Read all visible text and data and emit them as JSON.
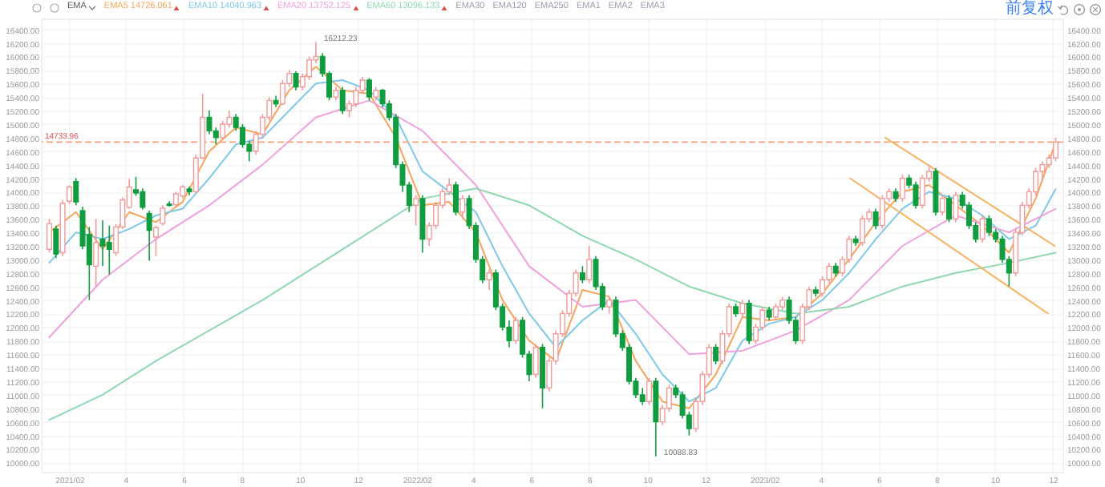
{
  "chart_data": {
    "type": "candlestick",
    "x": [
      "2021-01-11",
      "2021-01-18",
      "2021-01-25",
      "2021-02-01",
      "2021-02-08",
      "2021-02-15",
      "2021-02-22",
      "2021-03-01",
      "2021-03-08",
      "2021-03-15",
      "2021-03-22",
      "2021-03-29",
      "2021-04-05",
      "2021-04-12",
      "2021-04-19",
      "2021-04-26",
      "2021-05-03",
      "2021-05-10",
      "2021-05-17",
      "2021-05-24",
      "2021-05-31",
      "2021-06-07",
      "2021-06-14",
      "2021-06-21",
      "2021-06-28",
      "2021-07-05",
      "2021-07-12",
      "2021-07-19",
      "2021-07-26",
      "2021-08-02",
      "2021-08-09",
      "2021-08-16",
      "2021-08-23",
      "2021-08-30",
      "2021-09-06",
      "2021-09-13",
      "2021-09-20",
      "2021-09-27",
      "2021-10-04",
      "2021-10-11",
      "2021-10-18",
      "2021-10-25",
      "2021-11-01",
      "2021-11-08",
      "2021-11-15",
      "2021-11-22",
      "2021-11-29",
      "2021-12-06",
      "2021-12-13",
      "2021-12-20",
      "2021-12-27",
      "2022-01-03",
      "2022-01-10",
      "2022-01-17",
      "2022-01-24",
      "2022-01-31",
      "2022-02-07",
      "2022-02-14",
      "2022-02-21",
      "2022-02-28",
      "2022-03-07",
      "2022-03-14",
      "2022-03-21",
      "2022-03-28",
      "2022-04-04",
      "2022-04-11",
      "2022-04-18",
      "2022-04-25",
      "2022-05-02",
      "2022-05-09",
      "2022-05-16",
      "2022-05-23",
      "2022-05-30",
      "2022-06-06",
      "2022-06-13",
      "2022-06-20",
      "2022-06-27",
      "2022-07-04",
      "2022-07-11",
      "2022-07-18",
      "2022-07-25",
      "2022-08-01",
      "2022-08-08",
      "2022-08-15",
      "2022-08-22",
      "2022-08-29",
      "2022-09-05",
      "2022-09-12",
      "2022-09-19",
      "2022-09-26",
      "2022-10-03",
      "2022-10-10",
      "2022-10-17",
      "2022-10-24",
      "2022-10-31",
      "2022-11-07",
      "2022-11-14",
      "2022-11-21",
      "2022-11-28",
      "2022-12-05",
      "2022-12-12",
      "2022-12-19",
      "2022-12-26",
      "2023-01-02",
      "2023-01-09",
      "2023-01-16",
      "2023-01-23",
      "2023-01-30",
      "2023-02-06",
      "2023-02-13",
      "2023-02-20",
      "2023-02-27",
      "2023-03-06",
      "2023-03-13",
      "2023-03-20",
      "2023-03-27",
      "2023-04-03",
      "2023-04-10",
      "2023-04-17",
      "2023-04-24",
      "2023-05-01",
      "2023-05-08",
      "2023-05-15",
      "2023-05-22",
      "2023-05-29",
      "2023-06-05",
      "2023-06-12",
      "2023-06-19",
      "2023-06-26",
      "2023-07-03",
      "2023-07-10",
      "2023-07-17",
      "2023-07-24",
      "2023-07-31",
      "2023-08-07",
      "2023-08-14",
      "2023-08-21",
      "2023-08-28",
      "2023-09-04",
      "2023-09-11",
      "2023-09-18",
      "2023-09-25",
      "2023-10-02",
      "2023-10-09",
      "2023-10-16",
      "2023-10-23",
      "2023-10-30",
      "2023-11-06",
      "2023-11-13",
      "2023-11-20",
      "2023-11-27",
      "2023-12-04"
    ],
    "ohlc": [
      [
        13150,
        13600,
        13100,
        13530
      ],
      [
        13450,
        13500,
        13020,
        13080
      ],
      [
        13100,
        13880,
        13050,
        13830
      ],
      [
        13860,
        14100,
        13820,
        14070
      ],
      [
        14150,
        14200,
        13800,
        13850
      ],
      [
        13720,
        13780,
        13150,
        13200
      ],
      [
        13370,
        13480,
        12400,
        12920
      ],
      [
        12900,
        13600,
        12600,
        13250
      ],
      [
        13300,
        13580,
        12900,
        13200
      ],
      [
        13250,
        13500,
        12780,
        13150
      ],
      [
        13100,
        13520,
        13050,
        13480
      ],
      [
        13480,
        13920,
        13450,
        13880
      ],
      [
        13770,
        14190,
        13750,
        14070
      ],
      [
        14030,
        14220,
        13940,
        13980
      ],
      [
        14000,
        14050,
        13740,
        13770
      ],
      [
        13680,
        13720,
        12980,
        13430
      ],
      [
        13330,
        13500,
        13050,
        13470
      ],
      [
        13530,
        13800,
        13500,
        13760
      ],
      [
        13820,
        13860,
        13780,
        13800
      ],
      [
        13810,
        14000,
        13780,
        13970
      ],
      [
        13940,
        14100,
        13900,
        14070
      ],
      [
        14040,
        14080,
        13950,
        14000
      ],
      [
        14000,
        14550,
        13980,
        14500
      ],
      [
        14500,
        15450,
        14480,
        15100
      ],
      [
        15100,
        15200,
        14850,
        14900
      ],
      [
        14900,
        14950,
        14700,
        14800
      ],
      [
        14800,
        15050,
        14780,
        15000
      ],
      [
        15000,
        15200,
        14950,
        15100
      ],
      [
        15100,
        15150,
        14900,
        14950
      ],
      [
        14950,
        15000,
        14650,
        14700
      ],
      [
        14700,
        14750,
        14450,
        14600
      ],
      [
        14600,
        14900,
        14550,
        14850
      ],
      [
        14850,
        15150,
        14800,
        15100
      ],
      [
        15100,
        15400,
        15050,
        15350
      ],
      [
        15350,
        15420,
        15250,
        15300
      ],
      [
        15300,
        15650,
        15280,
        15600
      ],
      [
        15600,
        15800,
        15550,
        15750
      ],
      [
        15750,
        15780,
        15500,
        15550
      ],
      [
        15550,
        15750,
        15500,
        15700
      ],
      [
        15700,
        16000,
        15650,
        15950
      ],
      [
        15950,
        16212.23,
        15900,
        16000
      ],
      [
        16000,
        16050,
        15700,
        15750
      ],
      [
        15750,
        15780,
        15350,
        15400
      ],
      [
        15400,
        15550,
        15350,
        15500
      ],
      [
        15500,
        15550,
        15150,
        15200
      ],
      [
        15200,
        15350,
        15100,
        15300
      ],
      [
        15300,
        15550,
        15250,
        15500
      ],
      [
        15500,
        15700,
        15450,
        15650
      ],
      [
        15650,
        15680,
        15350,
        15400
      ],
      [
        15400,
        15550,
        15350,
        15500
      ],
      [
        15500,
        15520,
        15250,
        15300
      ],
      [
        15300,
        15350,
        15050,
        15100
      ],
      [
        15100,
        15150,
        14350,
        14400
      ],
      [
        14400,
        14450,
        14000,
        14100
      ],
      [
        14100,
        14150,
        13700,
        13800
      ],
      [
        13800,
        13950,
        13500,
        13900
      ],
      [
        13900,
        13950,
        13100,
        13300
      ],
      [
        13300,
        13550,
        13200,
        13500
      ],
      [
        13500,
        13850,
        13450,
        13800
      ],
      [
        13800,
        14050,
        13750,
        14000
      ],
      [
        14000,
        14200,
        13950,
        14100
      ],
      [
        14100,
        14150,
        13650,
        13700
      ],
      [
        13700,
        13950,
        13600,
        13900
      ],
      [
        13900,
        13950,
        13450,
        13500
      ],
      [
        13500,
        13550,
        12950,
        13000
      ],
      [
        13000,
        13050,
        12650,
        12700
      ],
      [
        12700,
        12850,
        12550,
        12800
      ],
      [
        12800,
        12850,
        12250,
        12300
      ],
      [
        12300,
        12350,
        11950,
        12000
      ],
      [
        12000,
        12100,
        11700,
        11800
      ],
      [
        11800,
        12150,
        11750,
        12100
      ],
      [
        12100,
        12150,
        11550,
        11600
      ],
      [
        11600,
        11650,
        11200,
        11300
      ],
      [
        11300,
        11750,
        11250,
        11700
      ],
      [
        11700,
        11750,
        10800,
        11100
      ],
      [
        11100,
        11550,
        11050,
        11500
      ],
      [
        11500,
        11950,
        11450,
        11900
      ],
      [
        11900,
        12250,
        11850,
        12200
      ],
      [
        12200,
        12550,
        12150,
        12500
      ],
      [
        12500,
        12850,
        12450,
        12800
      ],
      [
        12800,
        12900,
        12650,
        12700
      ],
      [
        12700,
        13200,
        12650,
        13000
      ],
      [
        13000,
        13050,
        12550,
        12600
      ],
      [
        12600,
        12650,
        12250,
        12300
      ],
      [
        12300,
        12450,
        12200,
        12400
      ],
      [
        12400,
        12450,
        11850,
        11900
      ],
      [
        11900,
        11950,
        11650,
        11700
      ],
      [
        11700,
        11750,
        11150,
        11200
      ],
      [
        11200,
        11250,
        10950,
        11000
      ],
      [
        11000,
        11100,
        10850,
        10900
      ],
      [
        10900,
        11250,
        10850,
        11200
      ],
      [
        11200,
        11250,
        10088.83,
        10600
      ],
      [
        10600,
        10850,
        10550,
        10800
      ],
      [
        10800,
        11150,
        10750,
        11100
      ],
      [
        11100,
        11150,
        10950,
        11000
      ],
      [
        11000,
        11050,
        10650,
        10700
      ],
      [
        10700,
        10750,
        10400,
        10500
      ],
      [
        10500,
        10950,
        10450,
        10900
      ],
      [
        10900,
        11350,
        10850,
        11300
      ],
      [
        11300,
        11750,
        11250,
        11700
      ],
      [
        11700,
        11750,
        11450,
        11500
      ],
      [
        11500,
        11950,
        11450,
        11900
      ],
      [
        11900,
        12350,
        11850,
        12300
      ],
      [
        12300,
        12350,
        12150,
        12200
      ],
      [
        12200,
        12400,
        12150,
        12350
      ],
      [
        12350,
        12400,
        11750,
        11800
      ],
      [
        11800,
        12050,
        11750,
        12000
      ],
      [
        12000,
        12300,
        11950,
        12250
      ],
      [
        12250,
        12300,
        12100,
        12150
      ],
      [
        12150,
        12350,
        12100,
        12300
      ],
      [
        12300,
        12450,
        12250,
        12400
      ],
      [
        12400,
        12450,
        12050,
        12100
      ],
      [
        12100,
        12150,
        11750,
        11800
      ],
      [
        11800,
        12350,
        11750,
        12300
      ],
      [
        12300,
        12600,
        12250,
        12550
      ],
      [
        12550,
        12600,
        12450,
        12500
      ],
      [
        12500,
        12750,
        12450,
        12700
      ],
      [
        12700,
        12950,
        12650,
        12900
      ],
      [
        12900,
        12950,
        12750,
        12800
      ],
      [
        12800,
        13050,
        12750,
        13000
      ],
      [
        13000,
        13350,
        12950,
        13300
      ],
      [
        13300,
        13350,
        13200,
        13250
      ],
      [
        13250,
        13650,
        13200,
        13600
      ],
      [
        13600,
        13750,
        13550,
        13700
      ],
      [
        13700,
        13750,
        13450,
        13500
      ],
      [
        13500,
        13950,
        13450,
        13900
      ],
      [
        13900,
        14050,
        13850,
        14000
      ],
      [
        14000,
        14050,
        13850,
        13900
      ],
      [
        13900,
        14250,
        13850,
        14200
      ],
      [
        14200,
        14250,
        14050,
        14100
      ],
      [
        14100,
        14150,
        13750,
        13800
      ],
      [
        13800,
        14250,
        13750,
        14200
      ],
      [
        14200,
        14400,
        14150,
        14300
      ],
      [
        14300,
        14350,
        13650,
        13700
      ],
      [
        13700,
        13950,
        13650,
        13900
      ],
      [
        13900,
        13950,
        13550,
        13600
      ],
      [
        13600,
        14000,
        13550,
        13950
      ],
      [
        13950,
        14000,
        13750,
        13800
      ],
      [
        13800,
        13850,
        13450,
        13500
      ],
      [
        13500,
        13550,
        13250,
        13300
      ],
      [
        13300,
        13650,
        13250,
        13600
      ],
      [
        13600,
        13650,
        13350,
        13400
      ],
      [
        13400,
        13450,
        13250,
        13300
      ],
      [
        13300,
        13350,
        12950,
        13000
      ],
      [
        13000,
        13050,
        12600,
        12800
      ],
      [
        12800,
        13450,
        12750,
        13400
      ],
      [
        13400,
        13850,
        13350,
        13800
      ],
      [
        13800,
        14050,
        13750,
        14000
      ],
      [
        14000,
        14350,
        13950,
        14300
      ],
      [
        14300,
        14450,
        14150,
        14400
      ],
      [
        14400,
        14550,
        14350,
        14500
      ],
      [
        14500,
        14800,
        14450,
        14733.96
      ]
    ],
    "colors": [
      "#f29b9b",
      "#0f9d3f",
      "#f29b9b",
      "#f29b9b",
      "#0f9d3f",
      "#0f9d3f",
      "#0f9d3f",
      "#f29b9b",
      "#0f9d3f",
      "#0f9d3f",
      "#f29b9b",
      "#f29b9b",
      "#f29b9b",
      "#0f9d3f",
      "#0f9d3f",
      "#0f9d3f",
      "#f29b9b",
      "#f29b9b",
      "#0f9d3f",
      "#f29b9b",
      "#f29b9b",
      "#0f9d3f",
      "#f29b9b",
      "#f29b9b",
      "#0f9d3f",
      "#0f9d3f",
      "#f29b9b",
      "#f29b9b",
      "#0f9d3f",
      "#0f9d3f",
      "#0f9d3f",
      "#f29b9b",
      "#f29b9b",
      "#f29b9b",
      "#0f9d3f",
      "#f29b9b",
      "#f29b9b",
      "#0f9d3f",
      "#f29b9b",
      "#f29b9b",
      "#f29b9b",
      "#0f9d3f",
      "#0f9d3f",
      "#f29b9b",
      "#0f9d3f",
      "#f29b9b",
      "#f29b9b",
      "#f29b9b",
      "#0f9d3f",
      "#f29b9b",
      "#0f9d3f",
      "#0f9d3f",
      "#0f9d3f",
      "#0f9d3f",
      "#0f9d3f",
      "#f29b9b",
      "#0f9d3f",
      "#f29b9b",
      "#f29b9b",
      "#f29b9b",
      "#f29b9b",
      "#0f9d3f",
      "#f29b9b",
      "#0f9d3f",
      "#0f9d3f",
      "#0f9d3f",
      "#f29b9b",
      "#0f9d3f",
      "#0f9d3f",
      "#0f9d3f",
      "#f29b9b",
      "#0f9d3f",
      "#0f9d3f",
      "#f29b9b",
      "#0f9d3f",
      "#f29b9b",
      "#f29b9b",
      "#f29b9b",
      "#f29b9b",
      "#f29b9b",
      "#0f9d3f",
      "#f29b9b",
      "#0f9d3f",
      "#0f9d3f",
      "#f29b9b",
      "#0f9d3f",
      "#0f9d3f",
      "#0f9d3f",
      "#0f9d3f",
      "#0f9d3f",
      "#f29b9b",
      "#0f9d3f",
      "#f29b9b",
      "#f29b9b",
      "#0f9d3f",
      "#0f9d3f",
      "#0f9d3f",
      "#f29b9b",
      "#f29b9b",
      "#f29b9b",
      "#0f9d3f",
      "#f29b9b",
      "#f29b9b",
      "#0f9d3f",
      "#f29b9b",
      "#0f9d3f",
      "#f29b9b",
      "#f29b9b",
      "#0f9d3f",
      "#f29b9b",
      "#f29b9b",
      "#0f9d3f",
      "#0f9d3f",
      "#f29b9b",
      "#f29b9b",
      "#0f9d3f",
      "#f29b9b",
      "#f29b9b",
      "#0f9d3f",
      "#f29b9b",
      "#f29b9b",
      "#0f9d3f",
      "#f29b9b",
      "#f29b9b",
      "#0f9d3f",
      "#f29b9b",
      "#f29b9b",
      "#0f9d3f",
      "#f29b9b",
      "#0f9d3f",
      "#0f9d3f",
      "#f29b9b",
      "#f29b9b",
      "#0f9d3f",
      "#f29b9b",
      "#0f9d3f",
      "#f29b9b",
      "#0f9d3f",
      "#0f9d3f",
      "#0f9d3f",
      "#f29b9b",
      "#0f9d3f",
      "#0f9d3f",
      "#0f9d3f",
      "#0f9d3f",
      "#f29b9b",
      "#f29b9b",
      "#f29b9b",
      "#f29b9b",
      "#f29b9b",
      "#f29b9b",
      "#f29b9b"
    ],
    "series": [
      {
        "name": "EMA5 14726.061",
        "type": "line",
        "color": "#f5a55a",
        "x": [
          "2021-01-11",
          "2021-02-08",
          "2021-03-08",
          "2021-04-05",
          "2021-05-03",
          "2021-05-31",
          "2021-06-28",
          "2021-07-26",
          "2021-08-23",
          "2021-09-20",
          "2021-10-18",
          "2021-11-15",
          "2021-12-13",
          "2022-01-10",
          "2022-02-07",
          "2022-03-07",
          "2022-04-04",
          "2022-05-02",
          "2022-05-30",
          "2022-06-27",
          "2022-07-25",
          "2022-08-22",
          "2022-09-19",
          "2022-10-17",
          "2022-11-14",
          "2022-12-12",
          "2023-01-09",
          "2023-02-06",
          "2023-03-06",
          "2023-04-03",
          "2023-05-01",
          "2023-05-29",
          "2023-06-26",
          "2023-07-24",
          "2023-08-21",
          "2023-09-18",
          "2023-10-16",
          "2023-11-13",
          "2023-12-04"
        ],
        "values": [
          13400,
          13700,
          13150,
          13700,
          13550,
          13850,
          14600,
          14950,
          14850,
          15500,
          15850,
          15500,
          15450,
          14800,
          13800,
          13850,
          13400,
          12400,
          11800,
          11500,
          12550,
          12450,
          11500,
          10900,
          10800,
          11300,
          12150,
          12100,
          12150,
          12500,
          13000,
          13550,
          14000,
          14100,
          13800,
          13500,
          13100,
          13900,
          14730
        ]
      },
      {
        "name": "EMA10 14040.963",
        "type": "line",
        "color": "#7ec8e8",
        "x": [
          "2021-01-11",
          "2021-02-08",
          "2021-03-08",
          "2021-04-05",
          "2021-05-03",
          "2021-05-31",
          "2021-06-28",
          "2021-07-26",
          "2021-08-23",
          "2021-09-20",
          "2021-10-18",
          "2021-11-15",
          "2021-12-13",
          "2022-01-10",
          "2022-02-07",
          "2022-03-07",
          "2022-04-04",
          "2022-05-02",
          "2022-05-30",
          "2022-06-27",
          "2022-07-25",
          "2022-08-22",
          "2022-09-19",
          "2022-10-17",
          "2022-11-14",
          "2022-12-12",
          "2023-01-09",
          "2023-02-06",
          "2023-03-06",
          "2023-04-03",
          "2023-05-01",
          "2023-05-29",
          "2023-06-26",
          "2023-07-24",
          "2023-08-21",
          "2023-09-18",
          "2023-10-16",
          "2023-11-13",
          "2023-12-04"
        ],
        "values": [
          12950,
          13400,
          13300,
          13450,
          13650,
          13750,
          14200,
          14700,
          14800,
          15200,
          15600,
          15650,
          15500,
          15100,
          14300,
          14000,
          13700,
          12900,
          12200,
          11700,
          12100,
          12400,
          11900,
          11300,
          10900,
          11100,
          11800,
          12050,
          12150,
          12400,
          12800,
          13300,
          13750,
          14000,
          13900,
          13650,
          13300,
          13500,
          14040
        ]
      },
      {
        "name": "EMA20 13752.125",
        "type": "line",
        "color": "#f0a0dc",
        "x": [
          "2021-01-11",
          "2021-03-08",
          "2021-05-03",
          "2021-06-28",
          "2021-08-23",
          "2021-10-18",
          "2021-12-13",
          "2022-02-07",
          "2022-04-04",
          "2022-05-30",
          "2022-07-25",
          "2022-09-19",
          "2022-11-14",
          "2023-01-09",
          "2023-03-06",
          "2023-05-01",
          "2023-06-26",
          "2023-08-21",
          "2023-10-16",
          "2023-12-04"
        ],
        "values": [
          11850,
          12700,
          13300,
          13800,
          14400,
          15100,
          15350,
          14900,
          14100,
          12900,
          12300,
          12400,
          11600,
          11650,
          11950,
          12400,
          13200,
          13650,
          13400,
          13750
        ]
      },
      {
        "name": "EMA60 13096.133",
        "type": "line",
        "color": "#8fd8b0",
        "x": [
          "2021-01-11",
          "2021-03-08",
          "2021-05-03",
          "2021-06-28",
          "2021-08-23",
          "2021-10-18",
          "2021-12-13",
          "2022-02-07",
          "2022-04-04",
          "2022-05-30",
          "2022-07-25",
          "2022-09-19",
          "2022-11-14",
          "2023-01-09",
          "2023-03-06",
          "2023-05-01",
          "2023-06-26",
          "2023-08-21",
          "2023-10-16",
          "2023-12-04"
        ],
        "values": [
          10630,
          11000,
          11500,
          11950,
          12400,
          12900,
          13400,
          13900,
          14050,
          13800,
          13350,
          13000,
          12600,
          12350,
          12200,
          12300,
          12600,
          12800,
          12950,
          13100
        ]
      },
      {
        "type": "line",
        "color": "#f7b262",
        "x": [
          "2023-06-08",
          "2023-12-03"
        ],
        "values": [
          14800,
          13200
        ]
      },
      {
        "type": "line",
        "color": "#f7b262",
        "x": [
          "2023-05-02",
          "2023-11-26"
        ],
        "values": [
          14200,
          12200
        ]
      }
    ],
    "xlim": [
      "2021-01-03",
      "2023-12-12"
    ],
    "xticks": [
      {
        "value": "2021-02-01",
        "label": "2021/02"
      },
      {
        "value": "2021-04-01",
        "label": "4"
      },
      {
        "value": "2021-06-01",
        "label": "6"
      },
      {
        "value": "2021-08-01",
        "label": "8"
      },
      {
        "value": "2021-10-01",
        "label": "10"
      },
      {
        "value": "2021-12-01",
        "label": "12"
      },
      {
        "value": "2022-02-01",
        "label": "2022/02"
      },
      {
        "value": "2022-04-01",
        "label": "4"
      },
      {
        "value": "2022-06-01",
        "label": "6"
      },
      {
        "value": "2022-08-01",
        "label": "8"
      },
      {
        "value": "2022-10-01",
        "label": "10"
      },
      {
        "value": "2022-12-01",
        "label": "12"
      },
      {
        "value": "2023-02-01",
        "label": "2023/02"
      },
      {
        "value": "2023-04-01",
        "label": "4"
      },
      {
        "value": "2023-06-01",
        "label": "6"
      },
      {
        "value": "2023-08-01",
        "label": "8"
      },
      {
        "value": "2023-10-01",
        "label": "10"
      },
      {
        "value": "2023-12-01",
        "label": "12"
      }
    ],
    "ylim": [
      9850,
      16550
    ],
    "yticks": [
      {
        "value": 10000,
        "label": "10000.00"
      },
      {
        "value": 10200,
        "label": "10200.00"
      },
      {
        "value": 10400,
        "label": "10400.00"
      },
      {
        "value": 10600,
        "label": "10600.00"
      },
      {
        "value": 10800,
        "label": "10800.00"
      },
      {
        "value": 11000,
        "label": "11000.00"
      },
      {
        "value": 11200,
        "label": "11200.00"
      },
      {
        "value": 11400,
        "label": "11400.00"
      },
      {
        "value": 11600,
        "label": "11600.00"
      },
      {
        "value": 11800,
        "label": "11800.00"
      },
      {
        "value": 12000,
        "label": "12000.00"
      },
      {
        "value": 12200,
        "label": "12200.00"
      },
      {
        "value": 12400,
        "label": "12400.00"
      },
      {
        "value": 12600,
        "label": "12600.00"
      },
      {
        "value": 12800,
        "label": "12800.00"
      },
      {
        "value": 13000,
        "label": "13000.00"
      },
      {
        "value": 13200,
        "label": "13200.00"
      },
      {
        "value": 13400,
        "label": "13400.00"
      },
      {
        "value": 13600,
        "label": "13600.00"
      },
      {
        "value": 13800,
        "label": "13800.00"
      },
      {
        "value": 14000,
        "label": "14000.00"
      },
      {
        "value": 14200,
        "label": "14200.00"
      },
      {
        "value": 14400,
        "label": "14400.00"
      },
      {
        "value": 14600,
        "label": "14600.00"
      },
      {
        "value": 14800,
        "label": "14800.00"
      },
      {
        "value": 15000,
        "label": "15000.00"
      },
      {
        "value": 15200,
        "label": "15200.00"
      },
      {
        "value": 15400,
        "label": "15400.00"
      },
      {
        "value": 15600,
        "label": "15600.00"
      },
      {
        "value": 15800,
        "label": "15800.00"
      },
      {
        "value": 16000,
        "label": "16000.00"
      },
      {
        "value": 16200,
        "label": "16200.00"
      },
      {
        "value": 16400,
        "label": "16400.00"
      }
    ],
    "y2lim": [
      9850,
      16550
    ],
    "y2ticks": [
      {
        "value": 10000,
        "label": "10000.00"
      },
      {
        "value": 10200,
        "label": "10200.00"
      },
      {
        "value": 10400,
        "label": "10400.00"
      },
      {
        "value": 10600,
        "label": "10600.00"
      },
      {
        "value": 10800,
        "label": "10800.00"
      },
      {
        "value": 11000,
        "label": "11000.00"
      },
      {
        "value": 11200,
        "label": "11200.00"
      },
      {
        "value": 11400,
        "label": "11400.00"
      },
      {
        "value": 11600,
        "label": "11600.00"
      },
      {
        "value": 11800,
        "label": "11800.00"
      },
      {
        "value": 12000,
        "label": "12000.00"
      },
      {
        "value": 12200,
        "label": "12200.00"
      },
      {
        "value": 12400,
        "label": "12400.00"
      },
      {
        "value": 12600,
        "label": "12600.00"
      },
      {
        "value": 12800,
        "label": "12800.00"
      },
      {
        "value": 13000,
        "label": "13000.00"
      },
      {
        "value": 13200,
        "label": "13200.00"
      },
      {
        "value": 13400,
        "label": "13400.00"
      },
      {
        "value": 13600,
        "label": "13600.00"
      },
      {
        "value": 13800,
        "label": "13800.00"
      },
      {
        "value": 14000,
        "label": "14000.00"
      },
      {
        "value": 14200,
        "label": "14200.00"
      },
      {
        "value": 14400,
        "label": "14400.00"
      },
      {
        "value": 14600,
        "label": "14600.00"
      },
      {
        "value": 14800,
        "label": "14800.00"
      },
      {
        "value": 15000,
        "label": "15000.00"
      },
      {
        "value": 15200,
        "label": "15200.00"
      },
      {
        "value": 15400,
        "label": "15400.00"
      },
      {
        "value": 15600,
        "label": "15600.00"
      },
      {
        "value": 15800,
        "label": "15800.00"
      },
      {
        "value": 16000,
        "label": "16000.00"
      },
      {
        "value": 16200,
        "label": "16200.00"
      },
      {
        "value": 16400,
        "label": "16400.00"
      }
    ],
    "ref_lines": [
      {
        "axis": "y",
        "value": 14733.96,
        "label": "14733.96",
        "color": "#f5a57a",
        "line_style": "dashed"
      }
    ],
    "annotations": [
      "EMA",
      "EMA30",
      "EMA120",
      "EMA250",
      "EMA1",
      "EMA2",
      "EMA3",
      "前复权",
      {
        "text": "16212.23",
        "x": "2021-10-18",
        "y": 16212.23
      },
      {
        "text": "10088.83",
        "x": "2022-10-10",
        "y": 10088.83
      }
    ],
    "grid": true,
    "legend": "top left"
  }
}
